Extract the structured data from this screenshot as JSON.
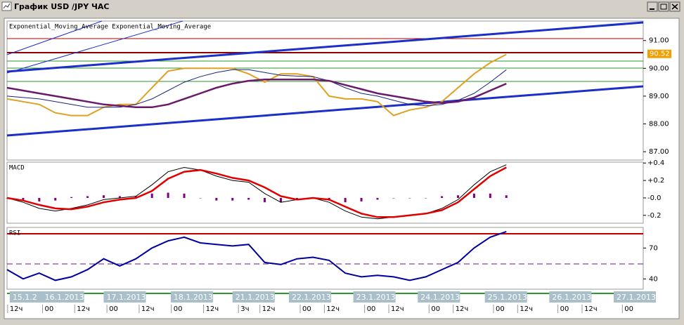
{
  "window_title": "График USD /JPY ЧАС",
  "chart_data": [
    {
      "type": "line",
      "title": "Exponential_Moving_Average Exponential_Moving_Average",
      "x": [
        0,
        6,
        12,
        18,
        24,
        30,
        36,
        42,
        48,
        54,
        60,
        66,
        72,
        78,
        84,
        90,
        96,
        102,
        108,
        114,
        120,
        126,
        132,
        138,
        144,
        150,
        156,
        162,
        168,
        174,
        180,
        186
      ],
      "xlim": [
        0,
        237
      ],
      "ylim": [
        86.7,
        91.7
      ],
      "yticks": [
        {
          "value": 91,
          "label": "91.00"
        },
        {
          "value": 90,
          "label": "90.00"
        },
        {
          "value": 89,
          "label": "89.00"
        },
        {
          "value": 88,
          "label": "88.00"
        },
        {
          "value": 87,
          "label": "87.00"
        }
      ],
      "last_value": 90.52,
      "last_value_color": "#f0a000",
      "series": [
        {
          "color": "#e0a020",
          "width": 2,
          "values": [
            88.9,
            88.8,
            88.7,
            88.4,
            88.3,
            88.3,
            88.6,
            88.7,
            88.7,
            89.3,
            89.9,
            90.0,
            90.0,
            90.0,
            90.0,
            89.8,
            89.5,
            89.8,
            89.8,
            89.7,
            89.0,
            88.9,
            88.9,
            88.8,
            88.3,
            88.5,
            88.6,
            88.8,
            89.3,
            89.8,
            90.2,
            90.5
          ]
        },
        {
          "color": "#1a237e",
          "width": 1,
          "values": [
            89.0,
            88.95,
            88.9,
            88.8,
            88.7,
            88.6,
            88.6,
            88.6,
            88.7,
            88.9,
            89.2,
            89.5,
            89.7,
            89.85,
            89.95,
            89.95,
            89.85,
            89.75,
            89.72,
            89.7,
            89.55,
            89.3,
            89.1,
            89.0,
            88.85,
            88.7,
            88.65,
            88.7,
            88.85,
            89.1,
            89.5,
            89.95
          ]
        },
        {
          "color": "#6a1a6a",
          "width": 2.5,
          "values": [
            89.3,
            89.2,
            89.1,
            89.0,
            88.9,
            88.8,
            88.7,
            88.65,
            88.6,
            88.6,
            88.7,
            88.9,
            89.1,
            89.3,
            89.45,
            89.55,
            89.6,
            89.6,
            89.6,
            89.6,
            89.55,
            89.4,
            89.25,
            89.1,
            89.0,
            88.9,
            88.8,
            88.75,
            88.8,
            88.95,
            89.2,
            89.45
          ]
        }
      ]
    },
    {
      "type": "line",
      "title": "MACD",
      "x": [
        0,
        6,
        12,
        18,
        24,
        30,
        36,
        42,
        48,
        54,
        60,
        66,
        72,
        78,
        84,
        90,
        96,
        102,
        108,
        114,
        120,
        126,
        132,
        138,
        144,
        150,
        156,
        162,
        168,
        174,
        180,
        186
      ],
      "xlim": [
        0,
        237
      ],
      "ylim": [
        -0.29,
        0.41
      ],
      "yticks": [
        {
          "value": 0.4,
          "label": "+0.4"
        },
        {
          "value": 0.2,
          "label": "+0.2"
        },
        {
          "value": 0,
          "label": "-0.0"
        },
        {
          "value": -0.2,
          "label": "-0.2"
        }
      ],
      "series": [
        {
          "kind": "bar",
          "color": "#800080",
          "width": 1,
          "values": [
            0.0,
            -0.02,
            -0.04,
            -0.03,
            0.01,
            0.02,
            0.03,
            0.02,
            0.02,
            0.05,
            0.06,
            0.05,
            0.0,
            -0.03,
            -0.03,
            -0.02,
            -0.05,
            -0.05,
            -0.02,
            0.0,
            -0.03,
            -0.05,
            -0.04,
            -0.02,
            0.0,
            0.0,
            0.0,
            0.02,
            0.03,
            0.05,
            0.05,
            0.03
          ]
        },
        {
          "color": "#000000",
          "width": 1,
          "values": [
            0.0,
            -0.05,
            -0.12,
            -0.15,
            -0.12,
            -0.08,
            -0.02,
            0.0,
            0.02,
            0.15,
            0.3,
            0.35,
            0.32,
            0.25,
            0.2,
            0.18,
            0.05,
            -0.05,
            -0.02,
            0.0,
            -0.05,
            -0.15,
            -0.22,
            -0.24,
            -0.22,
            -0.2,
            -0.18,
            -0.12,
            -0.02,
            0.15,
            0.3,
            0.38
          ]
        },
        {
          "color": "#e00000",
          "width": 2.5,
          "values": [
            0.0,
            -0.03,
            -0.08,
            -0.12,
            -0.13,
            -0.1,
            -0.05,
            -0.02,
            0.0,
            0.08,
            0.22,
            0.3,
            0.32,
            0.28,
            0.23,
            0.2,
            0.12,
            0.02,
            -0.02,
            0.0,
            -0.02,
            -0.1,
            -0.18,
            -0.22,
            -0.22,
            -0.2,
            -0.18,
            -0.14,
            -0.05,
            0.1,
            0.25,
            0.35
          ]
        }
      ]
    },
    {
      "type": "line",
      "title": "RSI",
      "x": [
        0,
        6,
        12,
        18,
        24,
        30,
        36,
        42,
        48,
        54,
        60,
        66,
        72,
        78,
        84,
        90,
        96,
        102,
        108,
        114,
        120,
        126,
        132,
        138,
        144,
        150,
        156,
        162,
        168,
        174,
        180,
        186
      ],
      "xlim": [
        0,
        237
      ],
      "ylim": [
        30,
        90
      ],
      "yticks": [
        70,
        40
      ],
      "series": [
        {
          "color": "#0000a0",
          "width": 2,
          "values": [
            49,
            40,
            45.6,
            38.6,
            42,
            49,
            59.5,
            52.6,
            59.5,
            70,
            77,
            80.5,
            75,
            73.5,
            72,
            73.5,
            56,
            54,
            59.5,
            61,
            58,
            45.6,
            42,
            43.4,
            42,
            38.6,
            42,
            49,
            56,
            70,
            80.5,
            86
          ]
        }
      ],
      "date_ticks": [
        {
          "value": 1,
          "label": "15.1.2"
        },
        {
          "value": 13,
          "label": "16.1.2013"
        },
        {
          "value": 36,
          "label": "17.1.2013"
        },
        {
          "value": 61,
          "label": "18.1.2013"
        },
        {
          "value": 84,
          "label": "21.1.2013"
        },
        {
          "value": 105,
          "label": "22.1.2013"
        },
        {
          "value": 129,
          "label": "23.1.2013"
        },
        {
          "value": 153,
          "label": "24.1.2013"
        },
        {
          "value": 178,
          "label": "25.1.2013"
        },
        {
          "value": 202,
          "label": "26.1.2013"
        },
        {
          "value": 226,
          "label": "27.1.2013"
        }
      ],
      "xticks": [
        {
          "value": 1,
          "label": "12ч"
        },
        {
          "value": 14,
          "label": "00"
        },
        {
          "value": 26,
          "label": "12ч"
        },
        {
          "value": 38,
          "label": "00"
        },
        {
          "value": 50,
          "label": "12ч"
        },
        {
          "value": 62,
          "label": "00"
        },
        {
          "value": 74,
          "label": "12ч"
        },
        {
          "value": 87,
          "label": "3ч"
        },
        {
          "value": 95,
          "label": "12ч"
        },
        {
          "value": 110,
          "label": "00"
        },
        {
          "value": 119,
          "label": "12ч"
        },
        {
          "value": 134,
          "label": "00"
        },
        {
          "value": 143,
          "label": "12ч"
        },
        {
          "value": 158,
          "label": "00"
        },
        {
          "value": 167,
          "label": "12ч"
        },
        {
          "value": 182,
          "label": "00"
        },
        {
          "value": 191,
          "label": "12ч"
        },
        {
          "value": 206,
          "label": "00"
        },
        {
          "value": 215,
          "label": "12ч"
        },
        {
          "value": 230,
          "label": "00"
        }
      ]
    }
  ]
}
